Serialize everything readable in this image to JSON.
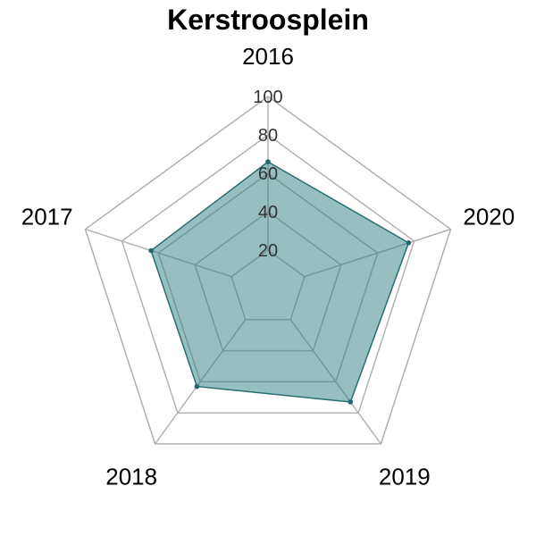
{
  "chart_data": {
    "type": "radar",
    "title": "Kerstroosplein",
    "axes": [
      "2016",
      "2017",
      "2018",
      "2019",
      "2020"
    ],
    "values": [
      66,
      64,
      63,
      73,
      77
    ],
    "rlim": [
      0,
      100
    ],
    "ticks": [
      "20",
      "40",
      "60",
      "80",
      "100"
    ],
    "grid": true,
    "colors": {
      "fill": "#2f7f7f",
      "line": "#2a6f6f",
      "grid": "#b3b3b3"
    }
  }
}
